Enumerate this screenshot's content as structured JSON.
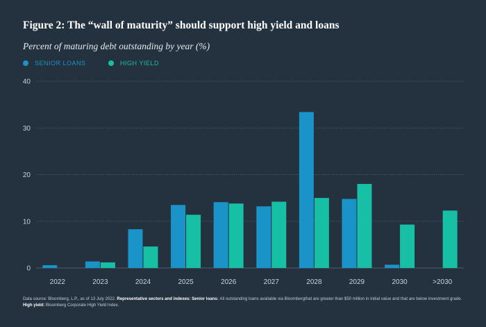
{
  "title": "Figure 2: The “wall of maturity” should support high yield and loans",
  "subtitle": "Percent of maturing debt outstanding by year (%)",
  "legend": [
    {
      "label": "SENIOR LOANS",
      "color": "#1a93c9"
    },
    {
      "label": "HIGH YIELD",
      "color": "#17bfa5"
    }
  ],
  "chart_data": {
    "type": "bar",
    "categories": [
      "2022",
      "2023",
      "2024",
      "2025",
      "2026",
      "2027",
      "2028",
      "2029",
      "2030",
      ">2030"
    ],
    "series": [
      {
        "name": "SENIOR LOANS",
        "color": "#1a93c9",
        "values": [
          0.6,
          1.4,
          8.3,
          13.5,
          14.1,
          13.2,
          33.4,
          14.8,
          0.7,
          null
        ]
      },
      {
        "name": "HIGH YIELD",
        "color": "#17bfa5",
        "values": [
          null,
          1.2,
          4.6,
          11.4,
          13.8,
          14.2,
          15.0,
          18.0,
          9.3,
          12.3
        ]
      }
    ],
    "yticks": [
      0,
      10,
      20,
      30,
      40
    ],
    "ylim": [
      0,
      40
    ],
    "grid": true,
    "legend_position": "top-left"
  },
  "footnote": {
    "parts": [
      {
        "text": "Data source: Bloomberg, L.P., as of 13 July 2022. ",
        "bold": false
      },
      {
        "text": "Representative sectors and indexes: Senior loans: ",
        "bold": true
      },
      {
        "text": "All outstanding loans available via Bloombergthat are greater than $50 million in initial value and that are below investment grade. ",
        "bold": false
      },
      {
        "text": "High yield: ",
        "bold": true
      },
      {
        "text": "Bloomberg Corporate High Yield Index.",
        "bold": false
      }
    ]
  }
}
